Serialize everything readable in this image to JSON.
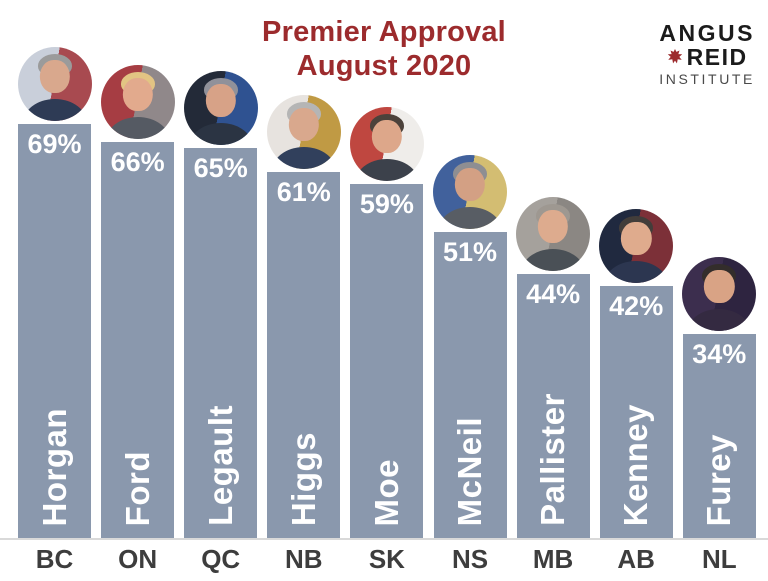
{
  "header": {
    "title_line1": "Premier Approval",
    "title_line2": "August 2020",
    "title_color": "#9c2b2d"
  },
  "logo": {
    "name_top": "ANGUS",
    "name_bottom": "REID",
    "subtitle": "INSTITUTE",
    "leaf_color": "#9c2b2d"
  },
  "chart_data": {
    "type": "bar",
    "title": "Premier Approval August 2020",
    "categories": [
      "BC",
      "ON",
      "QC",
      "NB",
      "SK",
      "NS",
      "MB",
      "AB",
      "NL"
    ],
    "series": [
      {
        "name": "Premier approval (%)",
        "values": [
          69,
          66,
          65,
          61,
          59,
          51,
          44,
          42,
          34
        ]
      }
    ],
    "bar_value_labels": [
      "69%",
      "66%",
      "65%",
      "61%",
      "59%",
      "51%",
      "44%",
      "42%",
      "34%"
    ],
    "bar_names": [
      "Horgan",
      "Ford",
      "Legault",
      "Higgs",
      "Moe",
      "McNeil",
      "Pallister",
      "Kenney",
      "Furey"
    ],
    "xlabel": "",
    "ylabel": "",
    "ylim": [
      0,
      72
    ],
    "grid": "off",
    "legend": "none",
    "bar_color": "#8a98ad",
    "value_label_color": "#ffffff",
    "category_label_color": "#3d3d3d",
    "baseline_color": "#d9d9d9"
  },
  "bars": [
    {
      "province": "BC",
      "premier": "Horgan",
      "approval_pct": 69,
      "label": "69%",
      "photo_palette": {
        "bg1": "#c9cfda",
        "bg2": "#a84a50",
        "hair": "#9b9b9b",
        "skin": "#d9a88d",
        "suit": "#2e3b55"
      }
    },
    {
      "province": "ON",
      "premier": "Ford",
      "approval_pct": 66,
      "label": "66%",
      "photo_palette": {
        "bg1": "#a63d43",
        "bg2": "#90888a",
        "hair": "#e2c483",
        "skin": "#e2aa8d",
        "suit": "#555a63"
      }
    },
    {
      "province": "QC",
      "premier": "Legault",
      "approval_pct": 65,
      "label": "65%",
      "photo_palette": {
        "bg1": "#232a38",
        "bg2": "#2f5291",
        "hair": "#90919a",
        "skin": "#d7a287",
        "suit": "#2b3443"
      }
    },
    {
      "province": "NB",
      "premier": "Higgs",
      "approval_pct": 61,
      "label": "61%",
      "photo_palette": {
        "bg1": "#e7e3df",
        "bg2": "#c09a44",
        "hair": "#b5b5b5",
        "skin": "#d9a88d",
        "suit": "#31405c"
      }
    },
    {
      "province": "SK",
      "premier": "Moe",
      "approval_pct": 59,
      "label": "59%",
      "photo_palette": {
        "bg1": "#bf4740",
        "bg2": "#efedea",
        "hair": "#4c423b",
        "skin": "#dda78a",
        "suit": "#3c414b"
      }
    },
    {
      "province": "NS",
      "premier": "McNeil",
      "approval_pct": 51,
      "label": "51%",
      "photo_palette": {
        "bg1": "#41619c",
        "bg2": "#d3bd72",
        "hair": "#8e8e92",
        "skin": "#d3a084",
        "suit": "#585d64"
      }
    },
    {
      "province": "MB",
      "premier": "Pallister",
      "approval_pct": 44,
      "label": "44%",
      "photo_palette": {
        "bg1": "#a5a19c",
        "bg2": "#8b8783",
        "hair": "#9e9891",
        "skin": "#ddab8e",
        "suit": "#4a5056"
      }
    },
    {
      "province": "AB",
      "premier": "Kenney",
      "approval_pct": 42,
      "label": "42%",
      "photo_palette": {
        "bg1": "#20293f",
        "bg2": "#7c3038",
        "hair": "#423d3a",
        "skin": "#dfab8d",
        "suit": "#2c3650"
      }
    },
    {
      "province": "NL",
      "premier": "Furey",
      "approval_pct": 34,
      "label": "34%",
      "photo_palette": {
        "bg1": "#3c2e4e",
        "bg2": "#2e2440",
        "hair": "#332d2b",
        "skin": "#d9a385",
        "suit": "#342a41"
      }
    }
  ]
}
